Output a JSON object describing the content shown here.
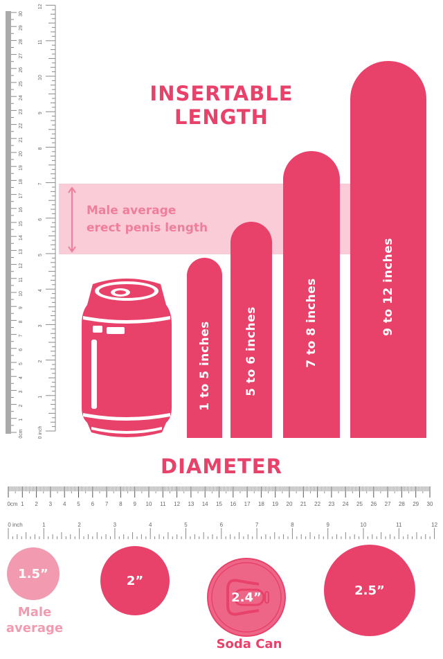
{
  "length_section": {
    "title_line1": "INSERTABLE",
    "title_line2": "LENGTH",
    "band_label_line1": "Male average",
    "band_label_line2": "erect penis length",
    "bars": [
      {
        "label": "1 to 5 inches",
        "max_inches": 5
      },
      {
        "label": "5 to 6 inches",
        "max_inches": 6
      },
      {
        "label": "7 to 8 inches",
        "max_inches": 8
      },
      {
        "label": "9 to 12 inches",
        "max_inches": 12
      }
    ]
  },
  "diameter_section": {
    "title": "DIAMETER",
    "circles": [
      {
        "label": "1.5”",
        "caption_line1": "Male",
        "caption_line2": "average"
      },
      {
        "label": "2”"
      },
      {
        "label": "2.4”",
        "caption_line1": "Soda Can"
      },
      {
        "label": "2.5”"
      }
    ]
  },
  "rulers": {
    "cm_unit": "cm",
    "inch_unit": "inch",
    "cm_max": 30,
    "inch_max": 12
  },
  "colors": {
    "accent": "#E8416A",
    "band": "#F9CCD7",
    "light": "#F29BB0",
    "can_top": "#EE6687",
    "ruler": "#888888"
  }
}
